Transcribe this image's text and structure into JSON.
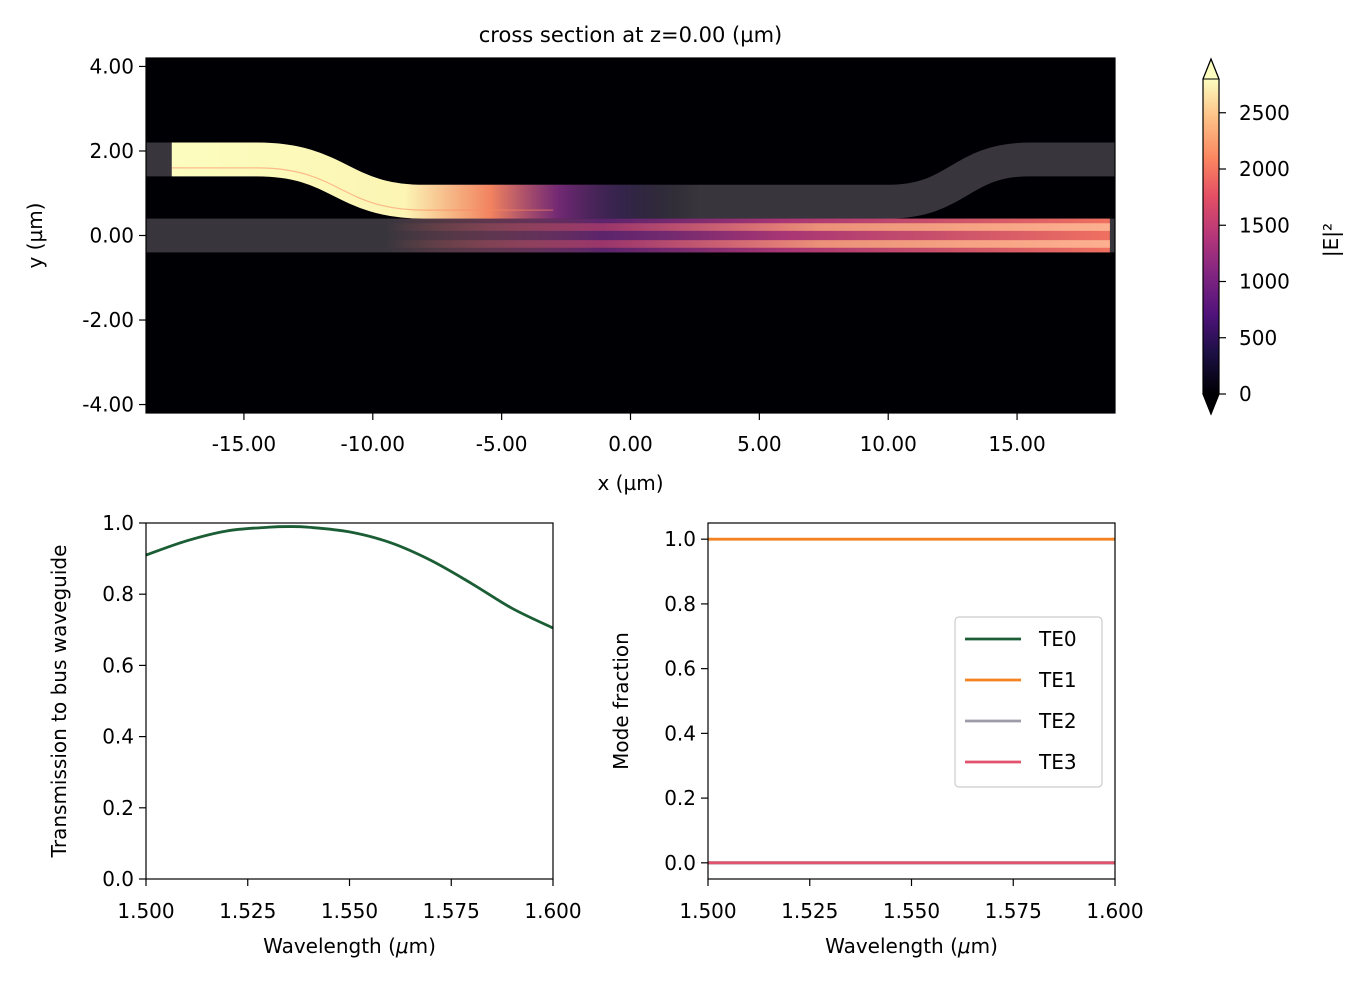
{
  "chart_data": [
    {
      "type": "heatmap",
      "title": "cross section at z=0.00 (µm)",
      "xlabel": "x (µm)",
      "ylabel": "y (µm)",
      "xlim": [
        -18.8,
        18.8
      ],
      "ylim": [
        -4.2,
        4.2
      ],
      "x_ticks": [
        -15,
        -10,
        -5,
        0,
        5,
        10,
        15
      ],
      "x_tick_labels": [
        "-15.00",
        "-10.00",
        "-5.00",
        "0.00",
        "5.00",
        "10.00",
        "15.00"
      ],
      "y_ticks": [
        4,
        2,
        0,
        -2,
        -4
      ],
      "y_tick_labels": [
        "4.00",
        "2.00",
        "0.00",
        "-2.00",
        "-4.00"
      ],
      "colorbar": {
        "label": "|E|²",
        "range": [
          0,
          2800
        ],
        "ticks": [
          0,
          500,
          1000,
          1500,
          2000,
          2500
        ],
        "tick_labels": [
          "0",
          "500",
          "1000",
          "1500",
          "2000",
          "2500"
        ],
        "colormap": "magma",
        "extend": "both"
      },
      "structures": {
        "bus_waveguide": {
          "y_center": 0.0,
          "width": 0.8,
          "x_range": [
            -18.8,
            18.8
          ]
        },
        "coupler_waveguide": {
          "y_far": 1.8,
          "y_near": 0.8,
          "bend_left": [
            -14.5,
            -8.0
          ],
          "bend_right": [
            10.0,
            15.5
          ]
        }
      },
      "grid": false
    },
    {
      "type": "line",
      "xlabel": "Wavelength (μm)",
      "ylabel": "Transmission to bus waveguide",
      "xlim": [
        1.5,
        1.6
      ],
      "ylim": [
        0.0,
        1.0
      ],
      "x_ticks": [
        1.5,
        1.525,
        1.55,
        1.575,
        1.6
      ],
      "x_tick_labels": [
        "1.500",
        "1.525",
        "1.550",
        "1.575",
        "1.600"
      ],
      "y_ticks": [
        0.0,
        0.2,
        0.4,
        0.6,
        0.8,
        1.0
      ],
      "y_tick_labels": [
        "0.0",
        "0.2",
        "0.4",
        "0.6",
        "0.8",
        "1.0"
      ],
      "series": [
        {
          "color": "#1b5e35",
          "x": [
            1.5,
            1.51,
            1.52,
            1.53,
            1.535,
            1.54,
            1.55,
            1.56,
            1.57,
            1.58,
            1.59,
            1.6
          ],
          "y": [
            0.91,
            0.95,
            0.978,
            0.988,
            0.99,
            0.988,
            0.975,
            0.945,
            0.895,
            0.83,
            0.76,
            0.705
          ]
        }
      ],
      "grid": false
    },
    {
      "type": "line",
      "xlabel": "Wavelength (μm)",
      "ylabel": "Mode fraction",
      "xlim": [
        1.5,
        1.6
      ],
      "ylim": [
        -0.05,
        1.05
      ],
      "x_ticks": [
        1.5,
        1.525,
        1.55,
        1.575,
        1.6
      ],
      "x_tick_labels": [
        "1.500",
        "1.525",
        "1.550",
        "1.575",
        "1.600"
      ],
      "y_ticks": [
        0.0,
        0.2,
        0.4,
        0.6,
        0.8,
        1.0
      ],
      "y_tick_labels": [
        "0.0",
        "0.2",
        "0.4",
        "0.6",
        "0.8",
        "1.0"
      ],
      "legend_position": "center-right",
      "series": [
        {
          "name": "TE0",
          "color": "#1b5e35",
          "x": [
            1.5,
            1.6
          ],
          "y": [
            0.0,
            0.0
          ]
        },
        {
          "name": "TE1",
          "color": "#f48220",
          "x": [
            1.5,
            1.6
          ],
          "y": [
            1.0,
            1.0
          ]
        },
        {
          "name": "TE2",
          "color": "#9e9aaa",
          "x": [
            1.5,
            1.6
          ],
          "y": [
            0.0,
            0.0
          ]
        },
        {
          "name": "TE3",
          "color": "#e0526e",
          "x": [
            1.5,
            1.6
          ],
          "y": [
            0.0,
            0.0
          ]
        }
      ],
      "grid": false
    }
  ]
}
